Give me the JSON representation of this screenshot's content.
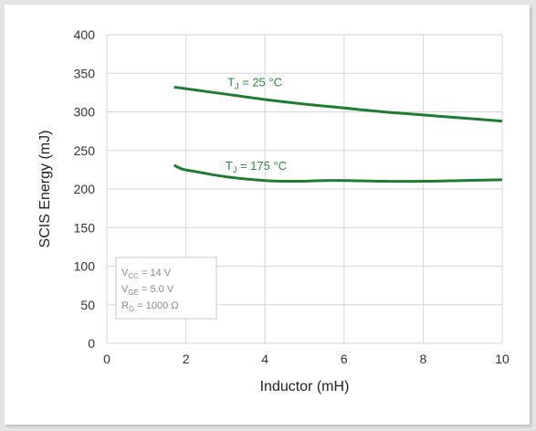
{
  "chart_data": {
    "type": "line",
    "xlabel": "Inductor (mH)",
    "ylabel": "SCIS Energy (mJ)",
    "xlim": [
      0,
      10
    ],
    "ylim": [
      0,
      400
    ],
    "xticks": [
      0,
      2,
      4,
      6,
      8,
      10
    ],
    "yticks": [
      0,
      50,
      100,
      150,
      200,
      250,
      300,
      350,
      400
    ],
    "grid": true,
    "series": [
      {
        "name": "TJ = 25 °C",
        "label_main": "T",
        "label_sub": "J",
        "label_tail": " = 25 °C",
        "color": "#1e7d32",
        "x": [
          1.7,
          2,
          3,
          4,
          5,
          6,
          7,
          8,
          9,
          10
        ],
        "y": [
          332,
          330,
          323,
          316,
          310,
          305,
          300,
          296,
          292,
          288
        ]
      },
      {
        "name": "TJ = 175 °C",
        "label_main": "T",
        "label_sub": "J",
        "label_tail": " = 175 °C",
        "color": "#1e7d32",
        "x": [
          1.7,
          1.9,
          2.2,
          3,
          4,
          4.7,
          5.5,
          6,
          7,
          8,
          9,
          10
        ],
        "y": [
          231,
          226,
          223,
          216,
          211,
          210,
          211,
          211,
          210,
          210,
          211,
          212
        ]
      }
    ],
    "conditions": [
      {
        "main": "V",
        "sub": "CC",
        "tail": " = 14 V"
      },
      {
        "main": "V",
        "sub": "GE",
        "tail": " = 5.0 V"
      },
      {
        "main": "R",
        "sub": "G",
        "tail": " = 1000 Ω"
      }
    ]
  }
}
